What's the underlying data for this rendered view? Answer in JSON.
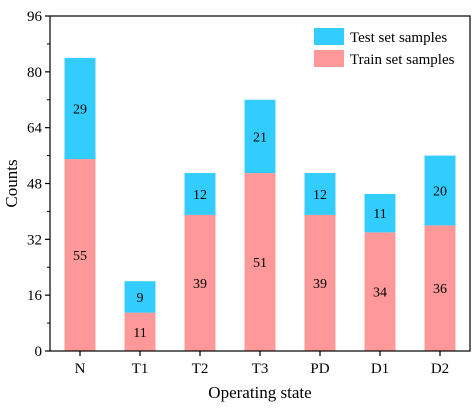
{
  "chart_data": {
    "type": "bar",
    "stacked": true,
    "categories": [
      "N",
      "T1",
      "T2",
      "T3",
      "PD",
      "D1",
      "D2"
    ],
    "series": [
      {
        "name": "Train set samples",
        "values": [
          55,
          11,
          39,
          51,
          39,
          34,
          36
        ],
        "color": "#ff9999"
      },
      {
        "name": "Test set samples",
        "values": [
          29,
          9,
          12,
          21,
          12,
          11,
          20
        ],
        "color": "#33ccff"
      }
    ],
    "legend_order": [
      "Test set samples",
      "Train set samples"
    ],
    "legend_position": "top-right",
    "xlabel": "Operating state",
    "ylabel": "Counts",
    "ylim": [
      0,
      96
    ],
    "yticks": [
      0,
      16,
      32,
      48,
      64,
      80,
      96
    ],
    "grid": false
  }
}
